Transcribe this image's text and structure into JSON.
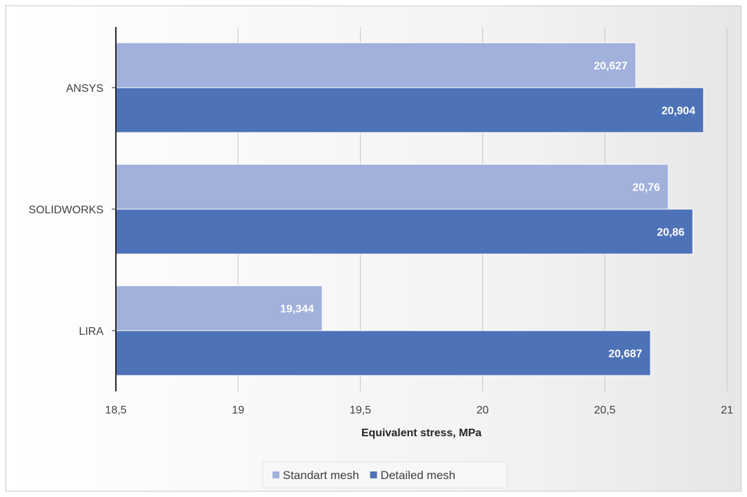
{
  "chart_data": {
    "type": "bar",
    "orientation": "horizontal",
    "categories": [
      "ANSYS",
      "SOLIDWORKS",
      "LIRA"
    ],
    "series": [
      {
        "name": "Standart mesh",
        "values": [
          20.627,
          20.76,
          19.344
        ],
        "labels": [
          "20,627",
          "20,76",
          "19,344"
        ],
        "color": "#a1b1dc"
      },
      {
        "name": "Detailed mesh",
        "values": [
          20.904,
          20.86,
          20.687
        ],
        "labels": [
          "20,904",
          "20,86",
          "20,687"
        ],
        "color": "#4e72b8"
      }
    ],
    "xlabel": "Equivalent stress, MPa",
    "xlim": [
      18.5,
      21
    ],
    "xticks": [
      18.5,
      19,
      19.5,
      20,
      20.5,
      21
    ],
    "xtick_labels": [
      "18,5",
      "19",
      "19,5",
      "20",
      "20,5",
      "21"
    ],
    "grid": true,
    "legend": "bottom"
  }
}
